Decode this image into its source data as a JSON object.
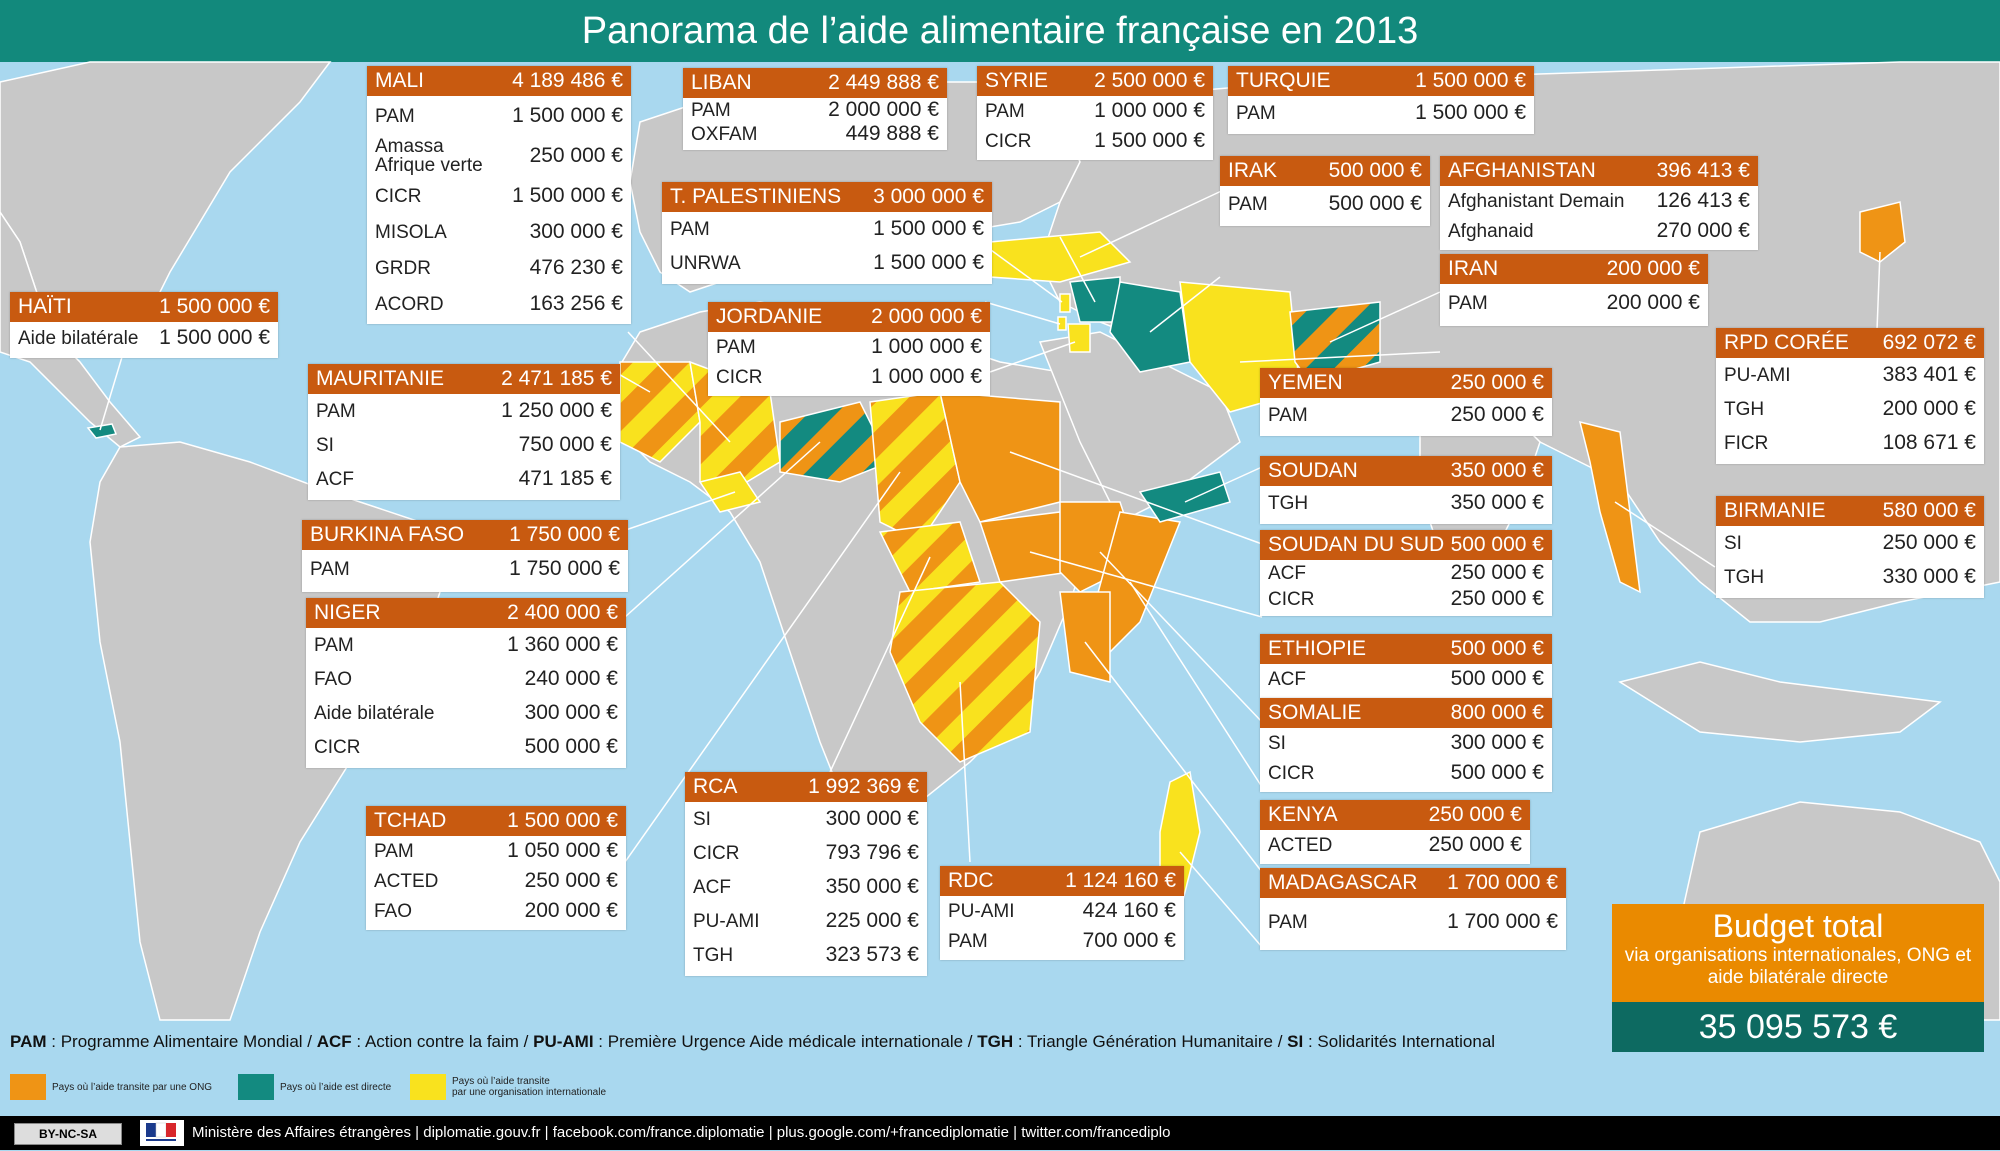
{
  "title": "Panorama de l’aide alimentaire française en 2013",
  "colors": {
    "header": "#12897c",
    "box_header": "#c85a10",
    "ngo": "#ef9415",
    "direct": "#138a80",
    "intl": "#f9e21e",
    "land": "#c8c8c8",
    "sea": "#a9d8ef"
  },
  "countries": [
    {
      "name": "HAÏTI",
      "total": "1 500 000 €",
      "items": [
        {
          "label": "Aide bilatérale",
          "amount": "1 500 000 €"
        }
      ]
    },
    {
      "name": "MALI",
      "total": "4 189 486 €",
      "items": [
        {
          "label": "PAM",
          "amount": "1 500 000 €"
        },
        {
          "label": "Amassa\nAfrique verte",
          "amount": "250 000 €"
        },
        {
          "label": "CICR",
          "amount": "1 500 000 €"
        },
        {
          "label": "MISOLA",
          "amount": "300 000 €"
        },
        {
          "label": "GRDR",
          "amount": "476 230 €"
        },
        {
          "label": "ACORD",
          "amount": "163 256 €"
        }
      ]
    },
    {
      "name": "LIBAN",
      "total": "2 449 888 €",
      "items": [
        {
          "label": "PAM",
          "amount": "2 000 000 €"
        },
        {
          "label": "OXFAM",
          "amount": "449 888 €"
        }
      ]
    },
    {
      "name": "SYRIE",
      "total": "2 500 000 €",
      "items": [
        {
          "label": "PAM",
          "amount": "1 000 000 €"
        },
        {
          "label": "CICR",
          "amount": "1 500 000 €"
        }
      ]
    },
    {
      "name": "TURQUIE",
      "total": "1 500 000 €",
      "items": [
        {
          "label": "PAM",
          "amount": "1 500 000 €"
        }
      ]
    },
    {
      "name": "T. PALESTINIENS",
      "total": "3 000 000 €",
      "items": [
        {
          "label": "PAM",
          "amount": "1 500 000 €"
        },
        {
          "label": "UNRWA",
          "amount": "1 500 000 €"
        }
      ]
    },
    {
      "name": "IRAK",
      "total": "500 000 €",
      "items": [
        {
          "label": "PAM",
          "amount": "500 000 €"
        }
      ]
    },
    {
      "name": "AFGHANISTAN",
      "total": "396 413 €",
      "items": [
        {
          "label": "Afghanistant Demain",
          "amount": "126 413 €"
        },
        {
          "label": "Afghanaid",
          "amount": "270 000 €"
        }
      ]
    },
    {
      "name": "IRAN",
      "total": "200 000 €",
      "items": [
        {
          "label": "PAM",
          "amount": "200 000 €"
        }
      ]
    },
    {
      "name": "JORDANIE",
      "total": "2 000 000 €",
      "items": [
        {
          "label": "PAM",
          "amount": "1 000 000 €"
        },
        {
          "label": "CICR",
          "amount": "1 000 000 €"
        }
      ]
    },
    {
      "name": "RPD CORÉE",
      "total": "692 072 €",
      "items": [
        {
          "label": "PU-AMI",
          "amount": "383 401 €"
        },
        {
          "label": "TGH",
          "amount": "200 000 €"
        },
        {
          "label": "FICR",
          "amount": "108 671 €"
        }
      ]
    },
    {
      "name": "MAURITANIE",
      "total": "2 471 185 €",
      "items": [
        {
          "label": "PAM",
          "amount": "1 250 000 €"
        },
        {
          "label": "SI",
          "amount": "750 000 €"
        },
        {
          "label": "ACF",
          "amount": "471 185 €"
        }
      ]
    },
    {
      "name": "YEMEN",
      "total": "250 000 €",
      "items": [
        {
          "label": "PAM",
          "amount": "250 000 €"
        }
      ]
    },
    {
      "name": "SOUDAN",
      "total": "350 000 €",
      "items": [
        {
          "label": "TGH",
          "amount": "350 000 €"
        }
      ]
    },
    {
      "name": "BIRMANIE",
      "total": "580 000 €",
      "items": [
        {
          "label": "SI",
          "amount": "250 000 €"
        },
        {
          "label": "TGH",
          "amount": "330 000 €"
        }
      ]
    },
    {
      "name": "BURKINA FASO",
      "total": "1 750 000 €",
      "items": [
        {
          "label": "PAM",
          "amount": "1 750 000 €"
        }
      ]
    },
    {
      "name": "SOUDAN DU SUD",
      "total": "500 000 €",
      "items": [
        {
          "label": "ACF",
          "amount": "250 000 €"
        },
        {
          "label": "CICR",
          "amount": "250 000 €"
        }
      ]
    },
    {
      "name": "NIGER",
      "total": "2 400 000 €",
      "items": [
        {
          "label": "PAM",
          "amount": "1 360 000 €"
        },
        {
          "label": "FAO",
          "amount": "240 000 €"
        },
        {
          "label": "Aide bilatérale",
          "amount": "300 000 €"
        },
        {
          "label": "CICR",
          "amount": "500 000 €"
        }
      ]
    },
    {
      "name": "ETHIOPIE",
      "total": "500 000 €",
      "items": [
        {
          "label": "ACF",
          "amount": "500 000 €"
        }
      ]
    },
    {
      "name": "SOMALIE",
      "total": "800 000 €",
      "items": [
        {
          "label": "SI",
          "amount": "300 000 €"
        },
        {
          "label": "CICR",
          "amount": "500 000 €"
        }
      ]
    },
    {
      "name": "RCA",
      "total": "1 992 369 €",
      "items": [
        {
          "label": "SI",
          "amount": "300 000 €"
        },
        {
          "label": "CICR",
          "amount": "793 796 €"
        },
        {
          "label": "ACF",
          "amount": "350 000 €"
        },
        {
          "label": "PU-AMI",
          "amount": "225 000 €"
        },
        {
          "label": "TGH",
          "amount": "323 573 €"
        }
      ]
    },
    {
      "name": "TCHAD",
      "total": "1 500 000 €",
      "items": [
        {
          "label": "PAM",
          "amount": "1 050 000 €"
        },
        {
          "label": "ACTED",
          "amount": "250 000 €"
        },
        {
          "label": "FAO",
          "amount": "200 000 €"
        }
      ]
    },
    {
      "name": "KENYA",
      "total": "250 000 €",
      "items": [
        {
          "label": "ACTED",
          "amount": "250 000 €"
        }
      ]
    },
    {
      "name": "RDC",
      "total": "1 124 160 €",
      "items": [
        {
          "label": "PU-AMI",
          "amount": "424 160 €"
        },
        {
          "label": "PAM",
          "amount": "700 000 €"
        }
      ]
    },
    {
      "name": "MADAGASCAR",
      "total": "1 700 000 €",
      "items": [
        {
          "label": "PAM",
          "amount": "1 700 000 €"
        }
      ]
    }
  ],
  "budget": {
    "title": "Budget total",
    "subtitle": "via organisations internationales, ONG et aide bilatérale directe",
    "amount": "35 095 573 €"
  },
  "abbreviations": [
    {
      "abbr": "PAM",
      "full": "Programme Alimentaire Mondial"
    },
    {
      "abbr": "ACF",
      "full": "Action contre la faim"
    },
    {
      "abbr": "PU-AMI",
      "full": "Première Urgence Aide médicale internationale"
    },
    {
      "abbr": "TGH",
      "full": "Triangle Génération Humanitaire"
    },
    {
      "abbr": "SI",
      "full": "Solidarités International"
    }
  ],
  "legend": [
    {
      "label": "Pays où l’aide transite par une ONG",
      "color": "#ef9415"
    },
    {
      "label": "Pays où l’aide est directe",
      "color": "#138a80"
    },
    {
      "label": "Pays où l’aide transite\npar une organisation internationale",
      "color": "#f9e21e"
    }
  ],
  "footer": {
    "license": "BY-NC-SA",
    "text": "Ministère des Affaires étrangères | diplomatie.gouv.fr | facebook.com/france.diplomatie | plus.google.com/+francediplomatie | twitter.com/francediplo"
  }
}
